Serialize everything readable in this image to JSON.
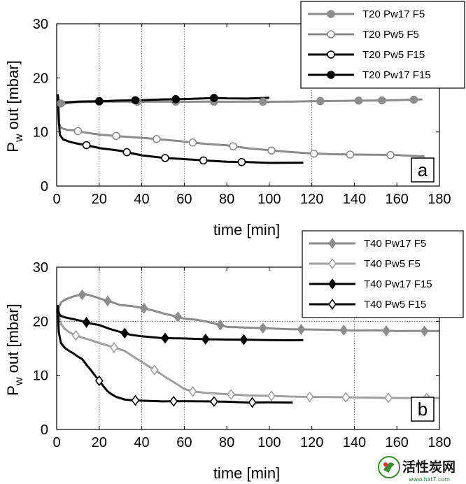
{
  "chart_data": [
    {
      "type": "line",
      "panel_label": "a",
      "xlabel": "time [min]",
      "ylabel_main": "P",
      "ylabel_sub": "w",
      "ylabel_rest": " out [mbar]",
      "xlim": [
        0,
        180
      ],
      "ylim": [
        0,
        30
      ],
      "xticks": [
        0,
        20,
        40,
        60,
        80,
        100,
        120,
        140,
        160,
        180
      ],
      "yticks": [
        0,
        10,
        20,
        30
      ],
      "vgrid": [
        20,
        40,
        60,
        120
      ],
      "hgrid": [],
      "legend_position": "top-right",
      "series": [
        {
          "name": "T20 Pw17 F5",
          "color": "#8c8c8c",
          "marker": "circle-filled",
          "x": [
            0.8,
            1.2,
            1.6,
            3,
            6,
            10,
            20,
            30,
            40,
            50,
            60,
            70,
            80,
            90,
            100,
            110,
            120,
            130,
            140,
            150,
            160,
            172
          ],
          "y": [
            16.5,
            15.0,
            15.3,
            15.2,
            15.4,
            15.5,
            15.6,
            15.6,
            15.6,
            15.6,
            15.6,
            15.6,
            15.6,
            15.6,
            15.6,
            15.6,
            15.7,
            15.7,
            15.8,
            15.8,
            15.9,
            16.0
          ],
          "marker_x": [
            2,
            20,
            38,
            56,
            74,
            97,
            124,
            142,
            153,
            168
          ]
        },
        {
          "name": "T20 Pw5 F5",
          "color": "#8c8c8c",
          "marker": "circle-open",
          "x": [
            0.8,
            1.2,
            2,
            3,
            5,
            8,
            12,
            20,
            30,
            40,
            50,
            60,
            70,
            80,
            90,
            100,
            110,
            120,
            130,
            140,
            150,
            160,
            173
          ],
          "y": [
            16.0,
            11.5,
            10.8,
            10.6,
            10.4,
            10.3,
            10.0,
            9.5,
            9.2,
            8.9,
            8.6,
            8.2,
            7.8,
            7.5,
            7.0,
            6.6,
            6.3,
            6.0,
            5.9,
            5.8,
            5.8,
            5.7,
            5.5
          ],
          "marker_x": [
            10,
            28,
            47,
            64,
            83,
            101,
            121,
            138,
            157
          ]
        },
        {
          "name": "T20 Pw5 F15",
          "color": "#000000",
          "marker": "circle-open",
          "x": [
            0.6,
            1.0,
            1.5,
            3,
            6,
            10,
            15,
            20,
            25,
            30,
            40,
            50,
            60,
            70,
            80,
            90,
            100,
            116
          ],
          "y": [
            16.5,
            12.0,
            9.5,
            8.6,
            8.2,
            7.8,
            7.5,
            7.0,
            6.8,
            6.5,
            5.7,
            5.2,
            5.0,
            4.7,
            4.5,
            4.4,
            4.3,
            4.3
          ],
          "marker_x": [
            14,
            33,
            51,
            69,
            87
          ]
        },
        {
          "name": "T20 Pw17 F15",
          "color": "#000000",
          "marker": "circle-filled",
          "x": [
            0.5,
            0.9,
            1.5,
            3,
            5,
            10,
            20,
            30,
            40,
            50,
            60,
            70,
            75,
            80,
            90,
            100
          ],
          "y": [
            17.0,
            15.0,
            15.3,
            15.4,
            15.5,
            15.6,
            15.7,
            15.8,
            15.9,
            16.0,
            16.1,
            16.2,
            16.3,
            16.2,
            16.2,
            16.3
          ],
          "marker_x": [
            20,
            37,
            56,
            74
          ]
        }
      ]
    },
    {
      "type": "line",
      "panel_label": "b",
      "xlabel": "time [min]",
      "ylabel_main": "P",
      "ylabel_sub": "w",
      "ylabel_rest": " out [mbar]",
      "xlim": [
        0,
        180
      ],
      "ylim": [
        0,
        30
      ],
      "xticks": [
        0,
        20,
        40,
        60,
        80,
        100,
        120,
        140,
        160,
        180
      ],
      "yticks": [
        0,
        10,
        20,
        30
      ],
      "vgrid": [
        20,
        40,
        60,
        140
      ],
      "hgrid": [
        20
      ],
      "legend_position": "top-right",
      "series": [
        {
          "name": "T40 Pw17 F5",
          "color": "#8c8c8c",
          "marker": "diamond-filled",
          "x": [
            0,
            1,
            2,
            4,
            7,
            10,
            14,
            18,
            22,
            26,
            30,
            35,
            40,
            45,
            50,
            55,
            60,
            65,
            70,
            75,
            80,
            90,
            100,
            110,
            120,
            130,
            140,
            150,
            160,
            170,
            180
          ],
          "y": [
            22.0,
            22.5,
            23.5,
            24.0,
            24.5,
            24.8,
            25.0,
            24.5,
            24.0,
            23.5,
            23.0,
            22.8,
            22.5,
            22.0,
            21.5,
            21.0,
            20.5,
            20.3,
            20.0,
            19.5,
            19.0,
            18.8,
            18.7,
            18.5,
            18.5,
            18.4,
            18.3,
            18.3,
            18.2,
            18.2,
            18.2
          ],
          "marker_x": [
            12,
            24,
            41,
            57,
            77,
            97,
            115,
            135,
            155,
            173
          ]
        },
        {
          "name": "T40 Pw5 F5",
          "color": "#a0a0a0",
          "marker": "diamond-open",
          "x": [
            0,
            1,
            2,
            4,
            6,
            8,
            12,
            16,
            20,
            24,
            28,
            32,
            36,
            40,
            44,
            48,
            52,
            56,
            60,
            64,
            70,
            80,
            90,
            100,
            110,
            120,
            130,
            140,
            150,
            160,
            170,
            180
          ],
          "y": [
            22.0,
            21.0,
            19.5,
            18.5,
            18.0,
            17.5,
            17.0,
            16.5,
            16.0,
            15.5,
            15.0,
            14.5,
            13.5,
            12.5,
            11.5,
            10.5,
            9.5,
            8.5,
            7.5,
            7.0,
            6.8,
            6.5,
            6.3,
            6.2,
            6.1,
            6.0,
            6.0,
            5.9,
            5.9,
            5.8,
            5.8,
            5.8
          ],
          "marker_x": [
            9,
            27,
            46,
            64,
            82,
            101,
            119,
            136,
            156,
            174
          ]
        },
        {
          "name": "T40 Pw17 F15",
          "color": "#000000",
          "marker": "diamond-filled",
          "x": [
            0.5,
            1,
            2,
            4,
            8,
            12,
            16,
            20,
            25,
            30,
            35,
            40,
            50,
            60,
            70,
            80,
            90,
            100,
            110,
            116
          ],
          "y": [
            23.0,
            21.5,
            21.0,
            20.7,
            20.4,
            20.0,
            19.6,
            19.3,
            18.6,
            18.0,
            17.5,
            17.2,
            16.9,
            16.8,
            16.7,
            16.6,
            16.6,
            16.5,
            16.5,
            16.5
          ],
          "marker_x": [
            14,
            32,
            51,
            70,
            88
          ]
        },
        {
          "name": "T40 Pw5 F15",
          "color": "#000000",
          "marker": "diamond-open",
          "x": [
            0.5,
            1,
            2,
            4,
            6,
            8,
            10,
            12,
            14,
            16,
            18,
            20,
            22,
            24,
            26,
            28,
            30,
            32,
            36,
            40,
            50,
            60,
            70,
            80,
            90,
            100,
            111
          ],
          "y": [
            23.0,
            18.0,
            16.0,
            15.0,
            14.5,
            14.0,
            13.5,
            13.0,
            12.0,
            11.0,
            10.0,
            9.0,
            8.0,
            7.0,
            6.5,
            6.0,
            5.8,
            5.5,
            5.4,
            5.3,
            5.2,
            5.2,
            5.2,
            5.1,
            5.0,
            5.0,
            5.0
          ],
          "marker_x": [
            20,
            37,
            55,
            74,
            92
          ]
        }
      ]
    }
  ],
  "watermark": {
    "text": "活性炭网",
    "url": "www.hxt7.com"
  }
}
